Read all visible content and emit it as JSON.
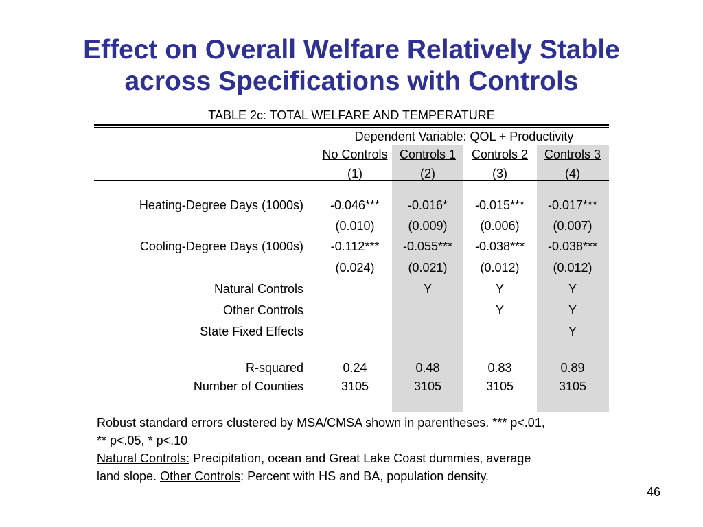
{
  "slide": {
    "title_line1": "Effect on Overall Welfare Relatively Stable",
    "title_line2": "across Specifications with Controls",
    "page_number": "46"
  },
  "table": {
    "caption": "TABLE 2c: TOTAL WELFARE AND TEMPERATURE",
    "dep_var": "Dependent Variable: QOL + Productivity",
    "columns": [
      "No Controls",
      "Controls 1",
      "Controls 2",
      "Controls 3"
    ],
    "column_numbers": [
      "(1)",
      "(2)",
      "(3)",
      "(4)"
    ],
    "rows": [
      {
        "label": "Heating-Degree Days (1000s)",
        "values": [
          "-0.046***",
          "-0.016*",
          "-0.015***",
          "-0.017***"
        ]
      },
      {
        "label": "",
        "values": [
          "(0.010)",
          "(0.009)",
          "(0.006)",
          "(0.007)"
        ]
      },
      {
        "label": "Cooling-Degree Days (1000s)",
        "values": [
          "-0.112***",
          "-0.055***",
          "-0.038***",
          "-0.038***"
        ]
      },
      {
        "label": "",
        "values": [
          "(0.024)",
          "(0.021)",
          "(0.012)",
          "(0.012)"
        ]
      },
      {
        "label": "Natural Controls",
        "values": [
          "",
          "Y",
          "Y",
          "Y"
        ]
      },
      {
        "label": "Other Controls",
        "values": [
          "",
          "",
          "Y",
          "Y"
        ]
      },
      {
        "label": "State Fixed Effects",
        "values": [
          "",
          "",
          "",
          "Y"
        ]
      },
      {
        "label": "R-squared",
        "values": [
          "0.24",
          "0.48",
          "0.83",
          "0.89"
        ]
      },
      {
        "label": "Number of Counties",
        "values": [
          "3105",
          "3105",
          "3105",
          "3105"
        ]
      }
    ],
    "shade_color": "#d9d9d9"
  },
  "notes": {
    "line1": "Robust standard errors clustered by MSA/CMSA shown in parentheses. *** p<.01,",
    "line2": "** p<.05, * p<.10",
    "natural_label": "Natural Controls:",
    "natural_text": " Precipitation, ocean and Great Lake Coast dummies, average",
    "natural_text2": "land slope. ",
    "other_label": "Other Controls",
    "other_text": ": Percent with HS and BA, population density."
  },
  "colors": {
    "title": "#2E3192"
  }
}
